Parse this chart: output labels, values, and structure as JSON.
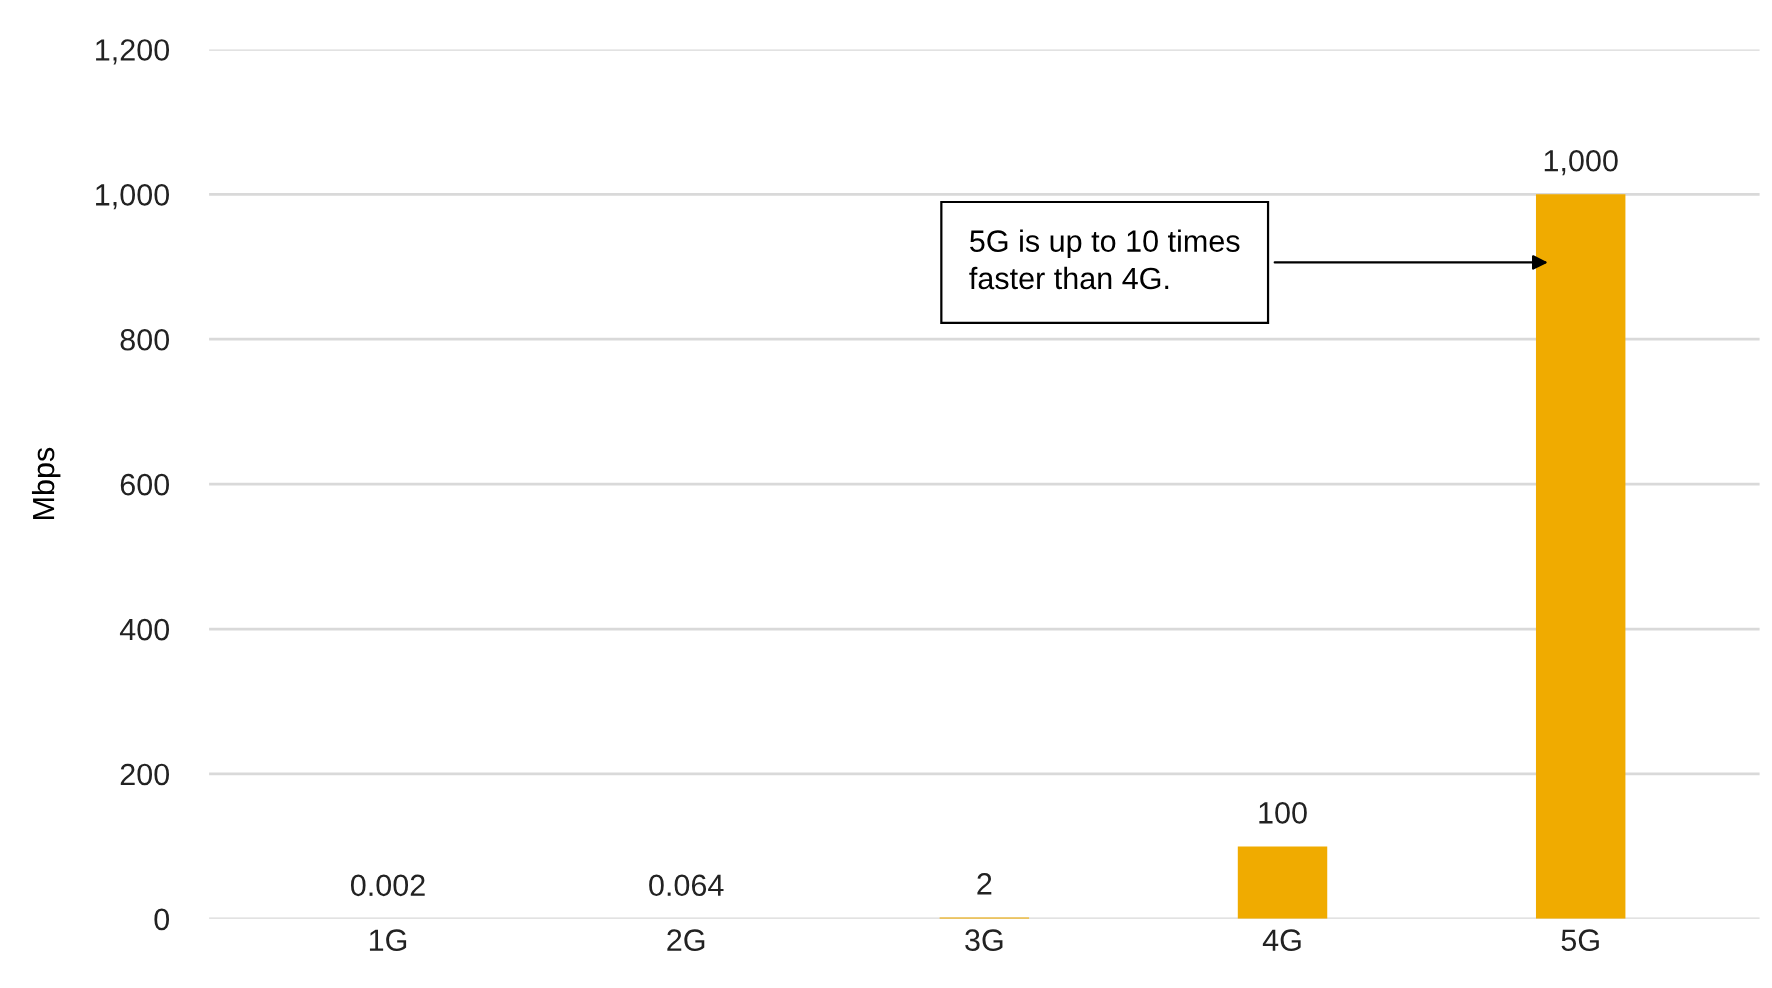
{
  "chart_data": {
    "type": "bar",
    "ylabel": "Mbps",
    "categories": [
      "1G",
      "2G",
      "3G",
      "4G",
      "5G"
    ],
    "values": [
      0.002,
      0.064,
      2,
      100,
      1000
    ],
    "value_labels": [
      "0.002",
      "0.064",
      "2",
      "100",
      "1,000"
    ],
    "color": "#f0ab00",
    "ylim": [
      0,
      1200
    ],
    "yticks": [
      {
        "value": 0,
        "label": "0"
      },
      {
        "value": 200,
        "label": "200"
      },
      {
        "value": 400,
        "label": "400"
      },
      {
        "value": 600,
        "label": "600"
      },
      {
        "value": 800,
        "label": "800"
      },
      {
        "value": 1000,
        "label": "1,000"
      },
      {
        "value": 1200,
        "label": "1,200"
      }
    ],
    "grid": "y",
    "annotations": [
      "5G is up to 10 times\nfaster than 4G."
    ]
  }
}
